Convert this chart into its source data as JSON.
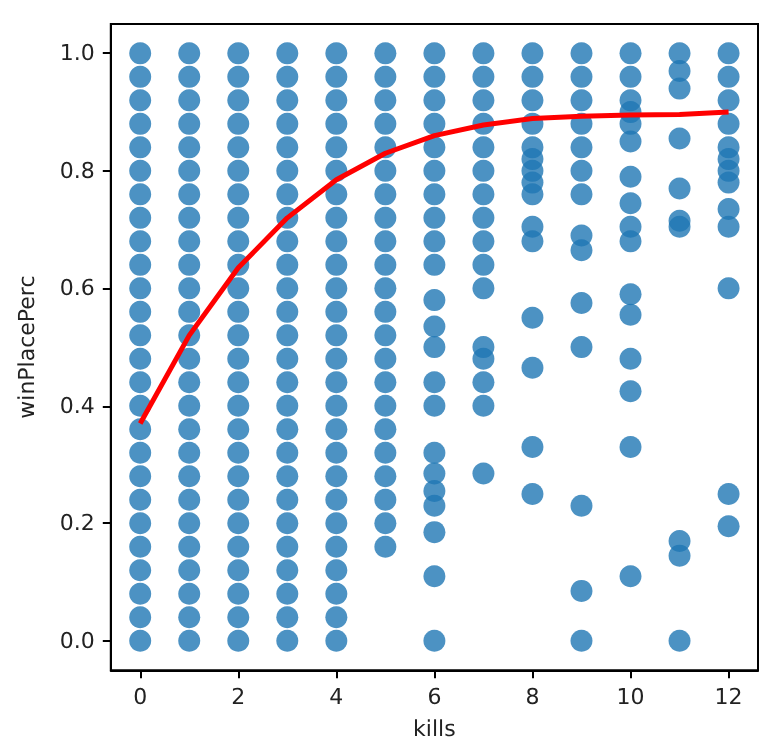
{
  "chart_data": {
    "type": "scatter",
    "xlabel": "kills",
    "ylabel": "winPlacePerc",
    "xlim": [
      -0.6,
      12.6
    ],
    "ylim": [
      -0.05,
      1.05
    ],
    "xticks": [
      0,
      2,
      4,
      6,
      8,
      10,
      12
    ],
    "yticks": [
      {
        "value": 0,
        "label": "0.0"
      },
      {
        "value": 0.2,
        "label": "0.2"
      },
      {
        "value": 0.4,
        "label": "0.4"
      },
      {
        "value": 0.6,
        "label": "0.6"
      },
      {
        "value": 0.8,
        "label": "0.8"
      },
      {
        "value": 1,
        "label": "1.0"
      }
    ],
    "grid": false,
    "marker": "circle",
    "series": [
      {
        "color": "#1f77b4",
        "x": [
          0,
          0,
          0,
          0,
          0,
          0,
          0,
          0,
          0,
          0,
          0,
          0,
          0,
          0,
          0,
          0,
          0,
          0,
          0,
          0,
          0,
          0,
          0,
          0,
          0,
          0,
          1,
          1,
          1,
          1,
          1,
          1,
          1,
          1,
          1,
          1,
          1,
          1,
          1,
          1,
          1,
          1,
          1,
          1,
          1,
          1,
          1,
          1,
          1,
          1,
          1,
          1,
          2,
          2,
          2,
          2,
          2,
          2,
          2,
          2,
          2,
          2,
          2,
          2,
          2,
          2,
          2,
          2,
          2,
          2,
          2,
          2,
          2,
          2,
          2,
          2,
          2,
          2,
          3,
          3,
          3,
          3,
          3,
          3,
          3,
          3,
          3,
          3,
          3,
          3,
          3,
          3,
          3,
          3,
          3,
          3,
          3,
          3,
          3,
          3,
          3,
          3,
          3,
          3,
          4,
          4,
          4,
          4,
          4,
          4,
          4,
          4,
          4,
          4,
          4,
          4,
          4,
          4,
          4,
          4,
          4,
          4,
          4,
          4,
          4,
          4,
          4,
          4,
          4,
          4,
          5,
          5,
          5,
          5,
          5,
          5,
          5,
          5,
          5,
          5,
          5,
          5,
          5,
          5,
          5,
          5,
          5,
          5,
          5,
          5,
          5,
          5,
          6,
          6,
          6,
          6,
          6,
          6,
          6,
          6,
          6,
          6,
          6,
          6,
          6,
          6,
          6,
          6,
          6,
          6,
          6,
          6,
          6,
          6,
          7,
          7,
          7,
          7,
          7,
          7,
          7,
          7,
          7,
          7,
          7,
          7,
          7,
          7,
          7,
          7,
          8,
          8,
          8,
          8,
          8,
          8,
          8,
          8,
          8,
          8,
          8,
          8,
          8,
          8,
          8,
          9,
          9,
          9,
          9,
          9,
          9,
          9,
          9,
          9,
          9,
          9,
          9,
          9,
          9,
          10,
          10,
          10,
          10,
          10,
          10,
          10,
          10,
          10,
          10,
          10,
          10,
          10,
          10,
          10,
          10,
          11,
          11,
          11,
          11,
          11,
          11,
          11,
          11,
          11,
          11,
          12,
          12,
          12,
          12,
          12,
          12,
          12,
          12,
          12,
          12,
          12,
          12,
          12
        ],
        "values": [
          0,
          0.04,
          0.08,
          0.12,
          0.16,
          0.2,
          0.24,
          0.28,
          0.32,
          0.36,
          0.4,
          0.44,
          0.48,
          0.52,
          0.56,
          0.6,
          0.64,
          0.68,
          0.72,
          0.76,
          0.8,
          0.84,
          0.88,
          0.92,
          0.96,
          1,
          0,
          0.04,
          0.08,
          0.12,
          0.16,
          0.2,
          0.24,
          0.28,
          0.32,
          0.36,
          0.4,
          0.44,
          0.48,
          0.52,
          0.56,
          0.6,
          0.64,
          0.68,
          0.72,
          0.76,
          0.8,
          0.84,
          0.88,
          0.92,
          0.96,
          1,
          0,
          0.04,
          0.08,
          0.12,
          0.16,
          0.2,
          0.24,
          0.28,
          0.32,
          0.36,
          0.4,
          0.44,
          0.48,
          0.52,
          0.56,
          0.6,
          0.64,
          0.68,
          0.72,
          0.76,
          0.8,
          0.84,
          0.88,
          0.92,
          0.96,
          1,
          0,
          0.04,
          0.08,
          0.12,
          0.16,
          0.2,
          0.24,
          0.28,
          0.32,
          0.36,
          0.4,
          0.44,
          0.48,
          0.52,
          0.56,
          0.6,
          0.64,
          0.68,
          0.72,
          0.76,
          0.8,
          0.84,
          0.88,
          0.92,
          0.96,
          1,
          0,
          0.04,
          0.08,
          0.12,
          0.16,
          0.2,
          0.24,
          0.28,
          0.32,
          0.36,
          0.4,
          0.44,
          0.48,
          0.52,
          0.56,
          0.6,
          0.64,
          0.68,
          0.72,
          0.76,
          0.8,
          0.84,
          0.88,
          0.92,
          0.96,
          1,
          0.16,
          0.2,
          0.24,
          0.28,
          0.32,
          0.36,
          0.4,
          0.44,
          0.48,
          0.52,
          0.56,
          0.6,
          0.64,
          0.68,
          0.72,
          0.76,
          0.8,
          0.84,
          0.88,
          0.92,
          0.96,
          1,
          0,
          0.11,
          0.185,
          0.23,
          0.255,
          0.285,
          0.32,
          0.4,
          0.44,
          0.5,
          0.535,
          0.58,
          0.64,
          0.68,
          0.72,
          0.76,
          0.8,
          0.84,
          0.88,
          0.92,
          0.96,
          1,
          0.285,
          0.4,
          0.44,
          0.48,
          0.5,
          0.6,
          0.64,
          0.68,
          0.72,
          0.76,
          0.8,
          0.84,
          0.88,
          0.92,
          0.96,
          1,
          0.25,
          0.33,
          0.465,
          0.55,
          0.68,
          0.705,
          0.76,
          0.78,
          0.8,
          0.84,
          0.88,
          0.92,
          0.96,
          1,
          0.82,
          0,
          0.085,
          0.23,
          0.5,
          0.575,
          0.665,
          0.69,
          0.76,
          0.8,
          0.84,
          0.88,
          0.92,
          0.96,
          1,
          0.11,
          0.33,
          0.425,
          0.48,
          0.555,
          0.59,
          0.68,
          0.705,
          0.745,
          0.79,
          0.85,
          0.88,
          0.92,
          0.96,
          1,
          0.9,
          0,
          0.145,
          0.17,
          0.705,
          0.715,
          0.77,
          0.855,
          0.94,
          0.97,
          1,
          0.195,
          0.25,
          0.6,
          0.705,
          0.735,
          0.78,
          0.8,
          0.84,
          0.88,
          0.92,
          0.96,
          1,
          0.82
        ]
      },
      {
        "type": "line",
        "marker": "none",
        "color": "#ff0000",
        "x": [
          0,
          1,
          2,
          3,
          4,
          5,
          6,
          7,
          8,
          9,
          10,
          11,
          12
        ],
        "values": [
          0.37,
          0.52,
          0.635,
          0.72,
          0.785,
          0.83,
          0.86,
          0.878,
          0.889,
          0.893,
          0.895,
          0.896,
          0.9
        ]
      }
    ]
  }
}
